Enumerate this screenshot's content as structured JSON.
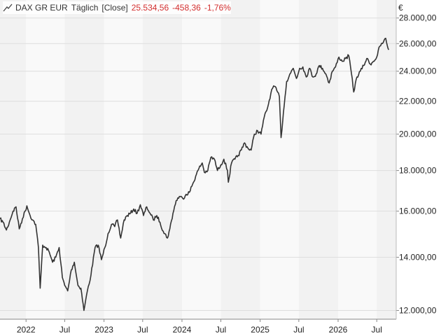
{
  "legend": {
    "symbol": "DAX GR EUR",
    "interval": "Täglich",
    "mode": "[Close]",
    "last": "25.534,56",
    "change": "-458,36",
    "change_pct": "-1,76%",
    "neg_color": "#d32f2f",
    "icon": "line-chart-icon"
  },
  "chart_data": {
    "type": "line",
    "currency_label": "€",
    "y_scale": "log",
    "ylim": [
      11700,
      29500
    ],
    "y_ticks": [
      {
        "value": 12000,
        "label": "12.000,00"
      },
      {
        "value": 14000,
        "label": "14.000,00"
      },
      {
        "value": 16000,
        "label": "16.000,00"
      },
      {
        "value": 18000,
        "label": "18.000,00"
      },
      {
        "value": 20000,
        "label": "20.000,00"
      },
      {
        "value": 22000,
        "label": "22.000,00"
      },
      {
        "value": 24000,
        "label": "24.000,00"
      },
      {
        "value": 26000,
        "label": "26.000,00"
      },
      {
        "value": 28000,
        "label": "28.000,00"
      }
    ],
    "xlim": [
      "2021-09-01",
      "2026-09-30"
    ],
    "x_ticks": [
      {
        "date": "2022-01-01",
        "label": "2022"
      },
      {
        "date": "2022-07-01",
        "label": "Jul"
      },
      {
        "date": "2023-01-01",
        "label": "2023"
      },
      {
        "date": "2023-07-01",
        "label": "Jul"
      },
      {
        "date": "2024-01-01",
        "label": "2024"
      },
      {
        "date": "2024-07-01",
        "label": "Jul"
      },
      {
        "date": "2025-01-01",
        "label": "2025"
      },
      {
        "date": "2025-07-01",
        "label": "Jul"
      },
      {
        "date": "2026-01-01",
        "label": "2026"
      },
      {
        "date": "2026-07-01",
        "label": "Jul"
      }
    ],
    "line_color": "#333333",
    "grid": true,
    "series": [
      {
        "values": [
          [
            "2021-09-01",
            15650
          ],
          [
            "2021-09-15",
            15500
          ],
          [
            "2021-10-01",
            15150
          ],
          [
            "2021-10-15",
            15500
          ],
          [
            "2021-11-01",
            16000
          ],
          [
            "2021-11-15",
            16200
          ],
          [
            "2021-11-30",
            15200
          ],
          [
            "2021-12-15",
            15650
          ],
          [
            "2022-01-05",
            16250
          ],
          [
            "2022-01-20",
            15800
          ],
          [
            "2022-02-01",
            15600
          ],
          [
            "2022-02-15",
            15400
          ],
          [
            "2022-02-28",
            14400
          ],
          [
            "2022-03-08",
            12800
          ],
          [
            "2022-03-20",
            14500
          ],
          [
            "2022-04-05",
            14400
          ],
          [
            "2022-04-20",
            14200
          ],
          [
            "2022-05-05",
            13800
          ],
          [
            "2022-05-20",
            14000
          ],
          [
            "2022-06-05",
            14400
          ],
          [
            "2022-06-20",
            13200
          ],
          [
            "2022-07-01",
            12900
          ],
          [
            "2022-07-15",
            12700
          ],
          [
            "2022-08-01",
            13500
          ],
          [
            "2022-08-15",
            13800
          ],
          [
            "2022-09-01",
            12900
          ],
          [
            "2022-09-15",
            12800
          ],
          [
            "2022-09-29",
            12000
          ],
          [
            "2022-10-15",
            12700
          ],
          [
            "2022-11-01",
            13300
          ],
          [
            "2022-11-20",
            14400
          ],
          [
            "2022-12-05",
            14500
          ],
          [
            "2022-12-20",
            13900
          ],
          [
            "2023-01-05",
            14400
          ],
          [
            "2023-01-20",
            15000
          ],
          [
            "2023-02-05",
            15400
          ],
          [
            "2023-02-20",
            15300
          ],
          [
            "2023-03-05",
            15600
          ],
          [
            "2023-03-20",
            14800
          ],
          [
            "2023-04-05",
            15600
          ],
          [
            "2023-04-20",
            15800
          ],
          [
            "2023-05-05",
            15900
          ],
          [
            "2023-05-20",
            16100
          ],
          [
            "2023-06-05",
            15900
          ],
          [
            "2023-06-20",
            16300
          ],
          [
            "2023-07-05",
            15800
          ],
          [
            "2023-07-20",
            16200
          ],
          [
            "2023-08-05",
            15900
          ],
          [
            "2023-08-20",
            15600
          ],
          [
            "2023-09-05",
            15800
          ],
          [
            "2023-09-20",
            15500
          ],
          [
            "2023-10-05",
            15100
          ],
          [
            "2023-10-25",
            14800
          ],
          [
            "2023-11-05",
            15200
          ],
          [
            "2023-11-20",
            15900
          ],
          [
            "2023-12-05",
            16500
          ],
          [
            "2023-12-20",
            16700
          ],
          [
            "2024-01-05",
            16600
          ],
          [
            "2024-01-20",
            16800
          ],
          [
            "2024-02-05",
            16900
          ],
          [
            "2024-02-20",
            17300
          ],
          [
            "2024-03-05",
            17700
          ],
          [
            "2024-03-20",
            18100
          ],
          [
            "2024-04-05",
            18400
          ],
          [
            "2024-04-15",
            17900
          ],
          [
            "2024-05-01",
            18000
          ],
          [
            "2024-05-15",
            18700
          ],
          [
            "2024-06-01",
            18600
          ],
          [
            "2024-06-15",
            18000
          ],
          [
            "2024-07-01",
            18300
          ],
          [
            "2024-07-15",
            18600
          ],
          [
            "2024-08-01",
            18000
          ],
          [
            "2024-08-05",
            17400
          ],
          [
            "2024-08-20",
            18400
          ],
          [
            "2024-09-05",
            18600
          ],
          [
            "2024-09-20",
            18800
          ],
          [
            "2024-10-05",
            19100
          ],
          [
            "2024-10-20",
            19500
          ],
          [
            "2024-11-05",
            19200
          ],
          [
            "2024-11-20",
            19100
          ],
          [
            "2024-12-05",
            20000
          ],
          [
            "2024-12-20",
            20200
          ],
          [
            "2025-01-05",
            20000
          ],
          [
            "2025-01-20",
            21000
          ],
          [
            "2025-02-05",
            21600
          ],
          [
            "2025-02-20",
            22500
          ],
          [
            "2025-03-05",
            23000
          ],
          [
            "2025-03-20",
            22700
          ],
          [
            "2025-04-01",
            22300
          ],
          [
            "2025-04-09",
            19800
          ],
          [
            "2025-04-20",
            21300
          ],
          [
            "2025-05-05",
            23300
          ],
          [
            "2025-05-20",
            23800
          ],
          [
            "2025-06-05",
            24200
          ],
          [
            "2025-06-20",
            23500
          ],
          [
            "2025-07-05",
            24200
          ],
          [
            "2025-07-20",
            24300
          ],
          [
            "2025-08-05",
            23600
          ],
          [
            "2025-08-20",
            24200
          ],
          [
            "2025-09-05",
            23600
          ],
          [
            "2025-09-20",
            23800
          ],
          [
            "2025-10-05",
            24400
          ],
          [
            "2025-10-20",
            24200
          ],
          [
            "2025-11-05",
            23800
          ],
          [
            "2025-11-20",
            23200
          ],
          [
            "2025-12-05",
            24000
          ],
          [
            "2025-12-20",
            24300
          ],
          [
            "2026-01-05",
            25000
          ],
          [
            "2026-01-20",
            24700
          ],
          [
            "2026-02-05",
            24900
          ],
          [
            "2026-02-20",
            25100
          ],
          [
            "2026-03-05",
            23800
          ],
          [
            "2026-03-15",
            22600
          ],
          [
            "2026-03-30",
            23600
          ],
          [
            "2026-04-15",
            24000
          ],
          [
            "2026-05-01",
            24400
          ],
          [
            "2026-05-15",
            24900
          ],
          [
            "2026-06-01",
            24500
          ],
          [
            "2026-06-15",
            24700
          ],
          [
            "2026-07-01",
            25000
          ],
          [
            "2026-07-15",
            25800
          ],
          [
            "2026-08-01",
            26100
          ],
          [
            "2026-08-12",
            26400
          ],
          [
            "2026-08-20",
            25800
          ],
          [
            "2026-08-26",
            25534.56
          ]
        ]
      }
    ]
  }
}
